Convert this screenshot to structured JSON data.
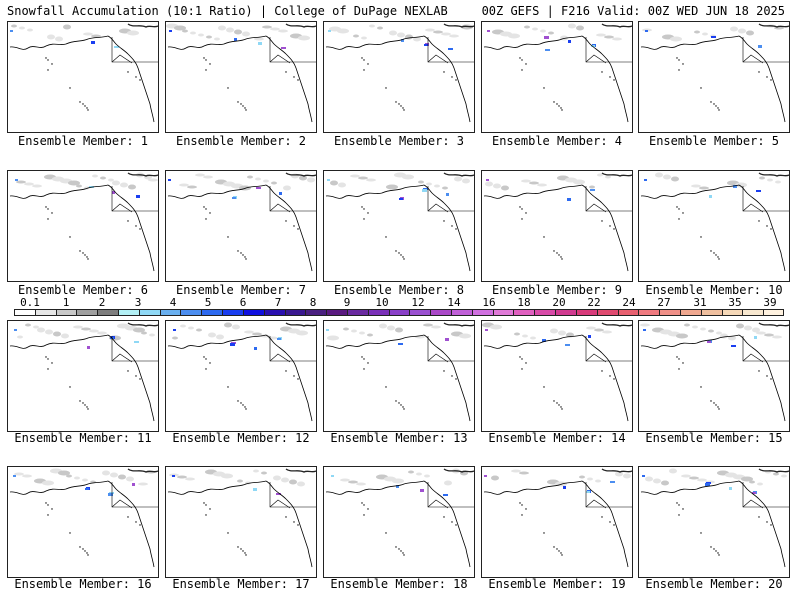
{
  "header": {
    "left_title": "Snowfall Accumulation (10:1 Ratio) | College of DuPage NEXLAB",
    "right_title": "00Z GEFS | F216 Valid: 00Z WED JUN 18 2025"
  },
  "panels": [
    {
      "caption": "Ensemble Member: 1"
    },
    {
      "caption": "Ensemble Member: 2"
    },
    {
      "caption": "Ensemble Member: 3"
    },
    {
      "caption": "Ensemble Member: 4"
    },
    {
      "caption": "Ensemble Member: 5"
    },
    {
      "caption": "Ensemble Member: 6"
    },
    {
      "caption": "Ensemble Member: 7"
    },
    {
      "caption": "Ensemble Member: 8"
    },
    {
      "caption": "Ensemble Member: 9"
    },
    {
      "caption": "Ensemble Member: 10"
    },
    {
      "caption": "Ensemble Member: 11"
    },
    {
      "caption": "Ensemble Member: 12"
    },
    {
      "caption": "Ensemble Member: 13"
    },
    {
      "caption": "Ensemble Member: 14"
    },
    {
      "caption": "Ensemble Member: 15"
    },
    {
      "caption": "Ensemble Member: 16"
    },
    {
      "caption": "Ensemble Member: 17"
    },
    {
      "caption": "Ensemble Member: 18"
    },
    {
      "caption": "Ensemble Member: 19"
    },
    {
      "caption": "Ensemble Member: 20"
    }
  ],
  "colorbar": {
    "labels": [
      "0.1",
      "1",
      "2",
      "3",
      "4",
      "5",
      "6",
      "7",
      "8",
      "9",
      "10",
      "12",
      "14",
      "16",
      "18",
      "20",
      "22",
      "24",
      "27",
      "31",
      "35",
      "39"
    ],
    "colors": [
      "#ffffff",
      "#e6e6e6",
      "#c8c8c8",
      "#a0a0a0",
      "#7e7e7e",
      "#b3f0f5",
      "#8fd8f5",
      "#6ab0f0",
      "#4c8ef0",
      "#2d6af0",
      "#1a3ef0",
      "#1010e0",
      "#2a10b0",
      "#3a1890",
      "#4a2080",
      "#5a1a80",
      "#6a2aa0",
      "#7a30b8",
      "#8a40c8",
      "#9a50d0",
      "#aa48c8",
      "#c060d8",
      "#d070e0",
      "#e07ad8",
      "#e060c0",
      "#d84aa8",
      "#d03a90",
      "#d83a7a",
      "#e04a70",
      "#e86070",
      "#f07a80",
      "#f09088",
      "#f0a890",
      "#f0c0a0",
      "#f5d8b8",
      "#f8e8d0",
      "#fff2e0"
    ]
  }
}
